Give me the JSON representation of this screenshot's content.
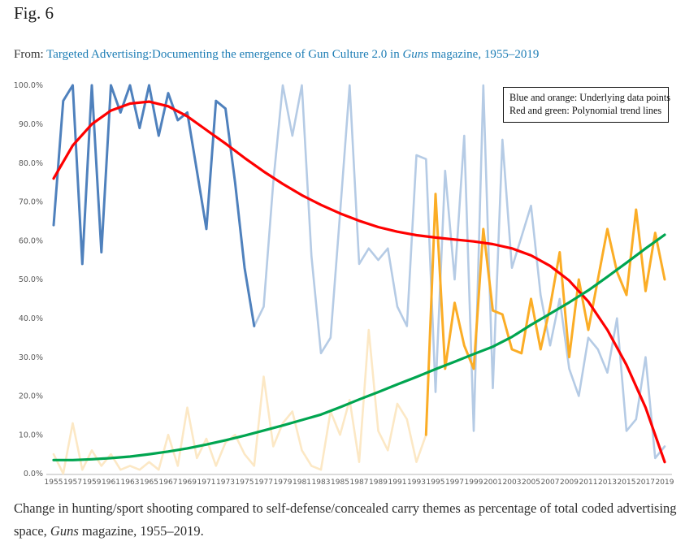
{
  "figure": {
    "label": "Fig. 6",
    "from_prefix": "From: ",
    "link_before_italic": "Targeted Advertising:Documenting the emergence of Gun Culture 2.0 in ",
    "link_italic": "Guns",
    "link_after_italic": " magazine, 1955–2019"
  },
  "legend": {
    "line1": "Blue and orange: Underlying data points",
    "line2": "Red and green: Polynomial trend lines"
  },
  "caption": {
    "before_italic": "Change in hunting/sport shooting compared to self-defense/concealed carry themes as percentage of total coded advertising space, ",
    "italic": "Guns",
    "after_italic": " magazine, 1955–2019."
  },
  "chart_data": {
    "type": "line",
    "title": "",
    "xlabel": "",
    "ylabel": "",
    "grid": false,
    "legend_position": "top-right",
    "ylim": [
      0,
      100
    ],
    "xlim": [
      1955,
      2019
    ],
    "y_tick_labels": [
      "0.0%",
      "10.0%",
      "20.0%",
      "30.0%",
      "40.0%",
      "50.0%",
      "60.0%",
      "70.0%",
      "80.0%",
      "90.0%",
      "100.0%"
    ],
    "x_tick_years": [
      1955,
      1957,
      1959,
      1961,
      1963,
      1965,
      1967,
      1969,
      1971,
      1973,
      1975,
      1977,
      1979,
      1981,
      1983,
      1985,
      1987,
      1989,
      1991,
      1993,
      1995,
      1997,
      1999,
      2001,
      2003,
      2005,
      2007,
      2009,
      2011,
      2013,
      2015,
      2017,
      2019
    ],
    "colors": {
      "blue_solid": "#4F81BD",
      "blue_faded": "#B5CBE5",
      "orange_solid": "#FBAD26",
      "orange_faded": "#FCE8C5",
      "red_trend": "#FE0000",
      "green_trend": "#00A550",
      "axis_text": "#595959",
      "axis_line": "#CFCFCF"
    },
    "series": [
      {
        "name": "self-defense-data-faded",
        "label": "Self-defense/concealed carry data points 1955-1994 (faded orange)",
        "color": "#FCE8C5",
        "width": 2.6,
        "start_year": 1955,
        "year_step": 1,
        "values": [
          5,
          0,
          13,
          1,
          6,
          2,
          5,
          1,
          2,
          1,
          3,
          1,
          10,
          2,
          17,
          4,
          9,
          2,
          8,
          10,
          5,
          2,
          25,
          7,
          13,
          16,
          6,
          2,
          1,
          16,
          10,
          19,
          3,
          37,
          11,
          6,
          18,
          14,
          3,
          10
        ]
      },
      {
        "name": "hunting-sport-data-faded",
        "label": "Hunting/sport shooting data points 1976-2019 (faded blue)",
        "color": "#B5CBE5",
        "width": 2.6,
        "start_year": 1976,
        "year_step": 1,
        "values": [
          38,
          43,
          75,
          100,
          87,
          100,
          56,
          31,
          35,
          67,
          100,
          54,
          58,
          55,
          58,
          43,
          38,
          82,
          81,
          21,
          78,
          50,
          87,
          11,
          100,
          22,
          86,
          53,
          61,
          69,
          46,
          33,
          45,
          27,
          20,
          35,
          32,
          26,
          40,
          11,
          14,
          30,
          4,
          7
        ]
      },
      {
        "name": "hunting-sport-data",
        "label": "Hunting/sport shooting data points 1955-1976 (blue)",
        "color": "#4F81BD",
        "width": 3,
        "start_year": 1955,
        "year_step": 1,
        "values": [
          64,
          96,
          100,
          54,
          100,
          57,
          100,
          93,
          100,
          89,
          100,
          87,
          98,
          91,
          93,
          78,
          63,
          96,
          94,
          75,
          53,
          38
        ]
      },
      {
        "name": "self-defense-data",
        "label": "Self-defense/concealed carry data points 1994-2019 (orange)",
        "color": "#FBAD26",
        "width": 3,
        "start_year": 1994,
        "year_step": 1,
        "values": [
          10,
          72,
          27,
          44,
          33,
          27,
          63,
          42,
          41,
          32,
          31,
          45,
          32,
          43,
          57,
          30,
          50,
          37,
          50,
          63,
          52,
          46,
          68,
          47,
          62,
          50
        ]
      },
      {
        "name": "hunting-sport-trend",
        "label": "Hunting/sport polynomial trend line (red)",
        "color": "#FE0000",
        "width": 3.2,
        "start_year": 1955,
        "year_step": 2,
        "values": [
          76,
          84.5,
          90,
          93.5,
          95.3,
          95.8,
          94.6,
          92,
          88.5,
          85,
          81.3,
          77.8,
          74.6,
          71.7,
          69.2,
          67,
          65.1,
          63.5,
          62.3,
          61.4,
          60.8,
          60.3,
          59.8,
          59.1,
          58,
          56.2,
          53.5,
          49.7,
          44.3,
          37,
          28,
          17,
          3
        ]
      },
      {
        "name": "self-defense-trend",
        "label": "Self-defense polynomial trend line (green)",
        "color": "#00A550",
        "width": 3.2,
        "start_year": 1955,
        "year_step": 2,
        "values": [
          3.5,
          3.5,
          3.7,
          4.0,
          4.4,
          5.0,
          5.7,
          6.5,
          7.5,
          8.6,
          9.8,
          11.1,
          12.4,
          13.8,
          15.2,
          17.1,
          19.1,
          21.0,
          23.0,
          24.9,
          26.9,
          28.8,
          30.8,
          32.7,
          35.2,
          38.3,
          41.2,
          44.1,
          47.2,
          50.7,
          54.3,
          58.0,
          61.5
        ]
      }
    ]
  }
}
